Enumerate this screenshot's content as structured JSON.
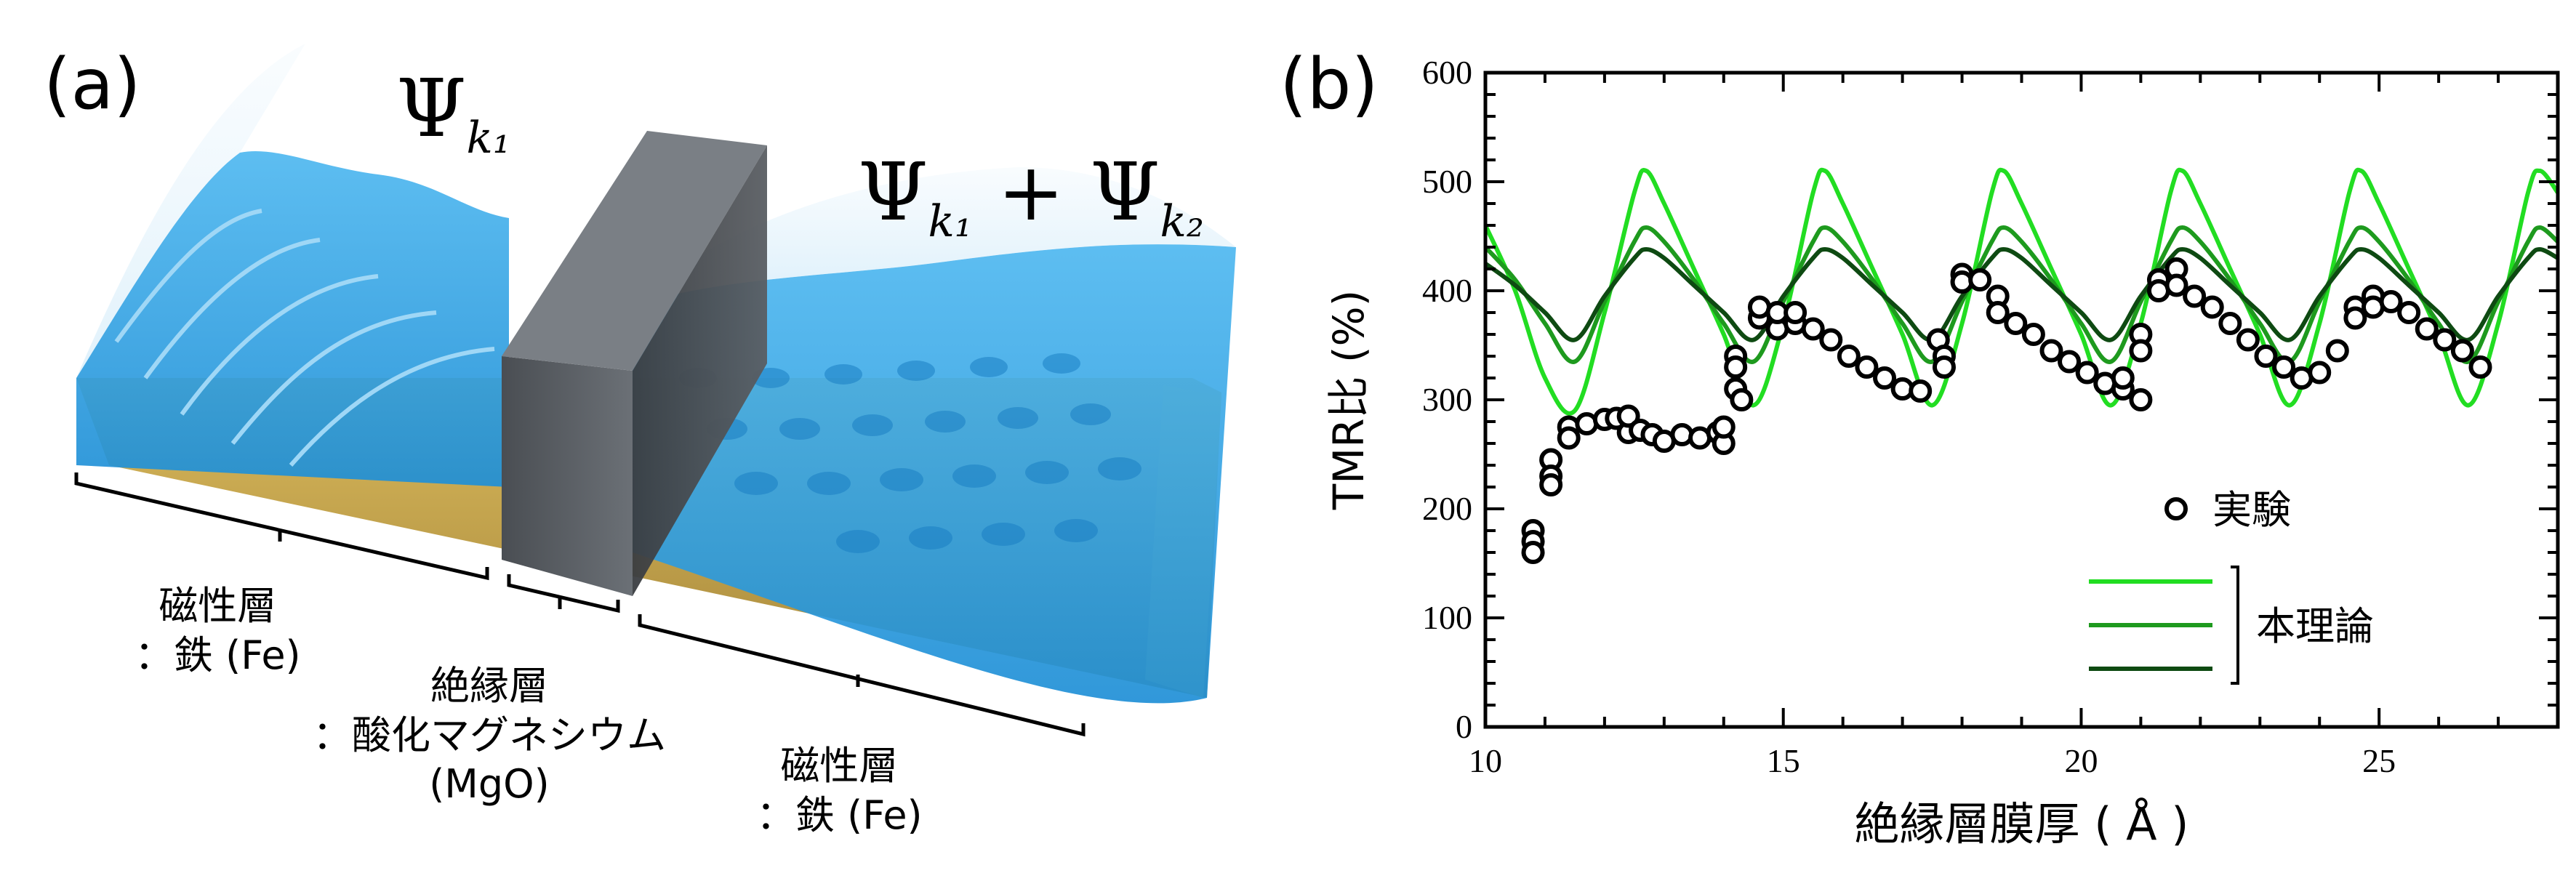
{
  "panel_a": {
    "panel_label": "(a)",
    "psi_left": {
      "symbol": "Ψ",
      "subscript": "k₁"
    },
    "psi_right": {
      "symbol": "Ψ",
      "sub1": "k₁",
      "plus": "+",
      "symbol2": "Ψ",
      "sub2": "k₂"
    },
    "left_layer": {
      "line1": "磁性層",
      "line2": "：鉄 (Fe)"
    },
    "barrier": {
      "line1": "絶縁層",
      "line2": "：酸化マグネシウム",
      "line3": "(MgO)"
    },
    "right_layer": {
      "line1": "磁性層",
      "line2": "：鉄 (Fe)"
    },
    "colors": {
      "wave": "#3aa6e6",
      "wave_light": "#bfe3f7",
      "barrier": "#555a60",
      "iron": "#c9a640"
    }
  },
  "panel_b": {
    "panel_label": "(b)"
  },
  "chart_data": {
    "type": "line",
    "xlabel": "絶縁層膜厚 ( Å )",
    "ylabel": "TMR比 (%)",
    "xlim": [
      10,
      28
    ],
    "ylim": [
      0,
      600
    ],
    "x_ticks": [
      "10",
      "15",
      "20",
      "25"
    ],
    "y_ticks": [
      "0",
      "100",
      "200",
      "300",
      "400",
      "500",
      "600"
    ],
    "grid": false,
    "legend": {
      "placement": "bottom-right",
      "marker_label": "実験",
      "line_group_label": "本理論"
    },
    "theory_period": 3.0,
    "theory_peak_x": [
      12.7,
      15.7,
      18.7,
      21.7,
      24.7,
      27.7
    ],
    "series": [
      {
        "kind": "line",
        "color": "#22dd22",
        "x": [
          10,
          10.5,
          11,
          11.5,
          12,
          12.5,
          12.7,
          13,
          13.5,
          14,
          14.5,
          15,
          15.5,
          15.7,
          16,
          16.5,
          17,
          17.5,
          18,
          18.5,
          18.7,
          19,
          19.5,
          20,
          20.5,
          21,
          21.5,
          21.7,
          22,
          22.5,
          23,
          23.5,
          24,
          24.5,
          24.7,
          25,
          25.5,
          26,
          26.5,
          27,
          27.5,
          27.7,
          28
        ],
        "y": [
          460,
          400,
          320,
          290,
          380,
          490,
          510,
          480,
          420,
          360,
          295,
          370,
          490,
          510,
          480,
          420,
          360,
          295,
          370,
          490,
          510,
          480,
          420,
          360,
          295,
          370,
          490,
          510,
          480,
          420,
          360,
          295,
          370,
          490,
          510,
          480,
          420,
          360,
          295,
          370,
          490,
          510,
          490
        ]
      },
      {
        "kind": "line",
        "color": "#1e9a1e",
        "x": [
          10,
          10.5,
          11,
          11.5,
          12,
          12.5,
          12.7,
          13,
          13.5,
          14,
          14.5,
          15,
          15.5,
          15.7,
          16,
          16.5,
          17,
          17.5,
          18,
          18.5,
          18.7,
          19,
          19.5,
          20,
          20.5,
          21,
          21.5,
          21.7,
          22,
          22.5,
          23,
          23.5,
          24,
          24.5,
          24.7,
          25,
          25.5,
          26,
          26.5,
          27,
          27.5,
          27.7,
          28
        ],
        "y": [
          440,
          410,
          370,
          335,
          390,
          445,
          458,
          445,
          410,
          370,
          335,
          390,
          445,
          458,
          445,
          410,
          370,
          335,
          390,
          445,
          458,
          445,
          410,
          370,
          335,
          390,
          445,
          458,
          445,
          410,
          370,
          335,
          390,
          445,
          458,
          445,
          410,
          370,
          335,
          390,
          445,
          458,
          445
        ]
      },
      {
        "kind": "line",
        "color": "#0e4a12",
        "x": [
          10,
          10.5,
          11,
          11.5,
          12,
          12.5,
          12.7,
          13,
          13.5,
          14,
          14.5,
          15,
          15.5,
          15.7,
          16,
          16.5,
          17,
          17.5,
          18,
          18.5,
          18.7,
          19,
          19.5,
          20,
          20.5,
          21,
          21.5,
          21.7,
          22,
          22.5,
          23,
          23.5,
          24,
          24.5,
          24.7,
          25,
          25.5,
          26,
          26.5,
          27,
          27.5,
          27.7,
          28
        ],
        "y": [
          425,
          405,
          380,
          355,
          395,
          430,
          438,
          430,
          405,
          380,
          355,
          395,
          430,
          438,
          430,
          405,
          380,
          355,
          395,
          430,
          438,
          430,
          405,
          380,
          355,
          395,
          430,
          438,
          430,
          405,
          380,
          355,
          395,
          430,
          438,
          430,
          405,
          380,
          355,
          395,
          430,
          438,
          430
        ]
      },
      {
        "kind": "scatter",
        "color": "#000000",
        "x": [
          10.8,
          10.8,
          10.8,
          11.1,
          11.1,
          11.1,
          11.4,
          11.4,
          11.7,
          12.0,
          12.2,
          12.4,
          12.4,
          12.6,
          12.8,
          13.0,
          13.3,
          13.6,
          13.9,
          14.0,
          14.0,
          14.2,
          14.2,
          14.2,
          14.3,
          14.6,
          14.6,
          14.9,
          14.9,
          15.2,
          15.2,
          15.5,
          15.8,
          16.1,
          16.4,
          16.7,
          17.0,
          17.3,
          17.6,
          17.7,
          17.7,
          18.0,
          18.0,
          18.3,
          18.6,
          18.6,
          18.9,
          19.2,
          19.5,
          19.8,
          20.1,
          20.4,
          20.7,
          20.7,
          21.0,
          21.0,
          21.0,
          21.3,
          21.3,
          21.6,
          21.6,
          21.9,
          22.2,
          22.5,
          22.8,
          23.1,
          23.4,
          23.7,
          24.0,
          24.3,
          24.6,
          24.6,
          24.9,
          24.9,
          25.2,
          25.5,
          25.8,
          26.1,
          26.4,
          26.7
        ],
        "y": [
          180,
          170,
          160,
          245,
          230,
          222,
          275,
          265,
          278,
          282,
          283,
          270,
          285,
          272,
          268,
          262,
          268,
          265,
          270,
          260,
          275,
          340,
          330,
          310,
          300,
          375,
          385,
          365,
          380,
          370,
          380,
          365,
          355,
          340,
          330,
          320,
          310,
          308,
          355,
          340,
          330,
          415,
          408,
          410,
          395,
          380,
          370,
          360,
          345,
          335,
          325,
          315,
          310,
          320,
          360,
          345,
          300,
          410,
          400,
          420,
          405,
          395,
          385,
          370,
          355,
          340,
          330,
          320,
          325,
          345,
          385,
          375,
          395,
          385,
          390,
          380,
          365,
          355,
          345,
          330
        ]
      }
    ]
  }
}
